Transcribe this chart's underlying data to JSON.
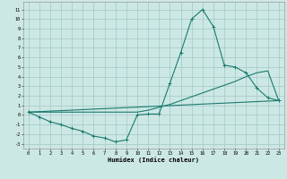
{
  "xlabel": "Humidex (Indice chaleur)",
  "background_color": "#cce8e5",
  "grid_color": "#aaccca",
  "line_color": "#1a7a6e",
  "xlim": [
    -0.5,
    23.5
  ],
  "ylim": [
    -3.5,
    11.8
  ],
  "xticks": [
    0,
    1,
    2,
    3,
    4,
    5,
    6,
    7,
    8,
    9,
    10,
    11,
    12,
    13,
    14,
    15,
    16,
    17,
    18,
    19,
    20,
    21,
    22,
    23
  ],
  "yticks": [
    -3,
    -2,
    -1,
    0,
    1,
    2,
    3,
    4,
    5,
    6,
    7,
    8,
    9,
    10,
    11
  ],
  "line1_x": [
    0,
    1,
    2,
    3,
    4,
    5,
    6,
    7,
    8,
    9,
    10,
    11,
    12,
    13,
    14,
    15,
    16,
    17,
    18,
    19,
    20,
    21,
    22,
    23
  ],
  "line1_y": [
    0.3,
    -0.2,
    -0.7,
    -1.0,
    -1.4,
    -1.7,
    -2.2,
    -2.4,
    -2.8,
    -2.6,
    0.0,
    0.1,
    0.1,
    3.3,
    6.5,
    10.0,
    11.0,
    9.2,
    5.2,
    5.0,
    4.4,
    2.8,
    1.8,
    1.5
  ],
  "line2_x": [
    0,
    10,
    11,
    12,
    13,
    14,
    15,
    16,
    17,
    18,
    19,
    20,
    21,
    22,
    23
  ],
  "line2_y": [
    0.3,
    0.3,
    0.5,
    0.8,
    1.1,
    1.5,
    1.9,
    2.3,
    2.7,
    3.1,
    3.5,
    4.0,
    4.4,
    4.6,
    1.5
  ],
  "line3_x": [
    0,
    23
  ],
  "line3_y": [
    0.3,
    1.5
  ]
}
